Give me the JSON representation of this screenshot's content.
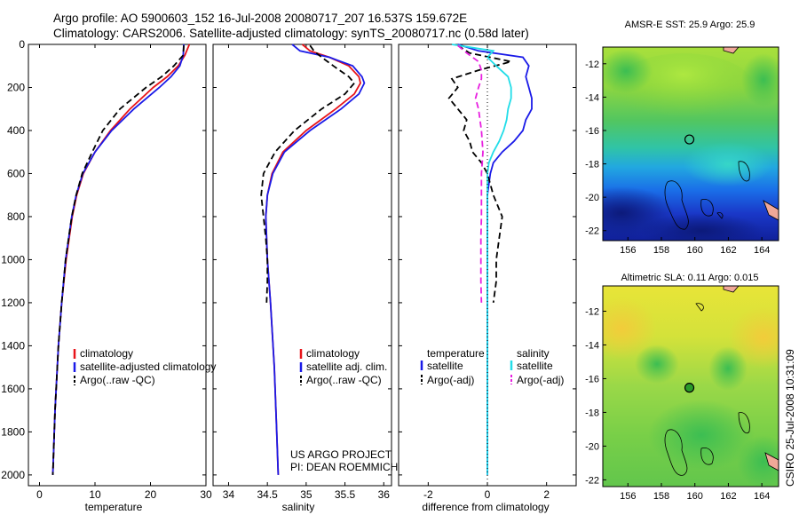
{
  "header": {
    "line1": "Argo profile: AO 5900603_152 16-Jul-2008 20080717_207 16.537S 159.672E",
    "line2": "Climatology: CARS2006. Satellite-adjusted climatology: synTS_20080717.nc (0.58d later)"
  },
  "footer": {
    "project": "US ARGO PROJECT",
    "pi": "PI: DEAN ROEMMICH",
    "stamp": "CSIRO 25-Jul-2008 10:31:09"
  },
  "colors": {
    "climatology": "#e8141a",
    "satellite": "#1a1ae8",
    "argo": "#000000",
    "sal_sat": "#22dde8",
    "sal_argo": "#e820e0"
  },
  "chart_data": [
    {
      "type": "line",
      "xlabel": "temperature",
      "ylabel": "",
      "xlim": [
        -2,
        30
      ],
      "ylim": [
        2050,
        0
      ],
      "xticks": [
        0,
        10,
        20,
        30
      ],
      "yticks": [
        0,
        200,
        400,
        600,
        800,
        1000,
        1200,
        1400,
        1600,
        1800,
        2000
      ],
      "legend": [
        "climatology",
        "satellite-adjusted climatology",
        "Argo(..raw -QC)"
      ],
      "series": [
        {
          "name": "climatology",
          "style": "solid",
          "color": "#e8141a",
          "depth": [
            0,
            50,
            100,
            150,
            200,
            300,
            400,
            500,
            600,
            700,
            800,
            1000,
            1200,
            1400,
            1700,
            2000
          ],
          "values": [
            27.0,
            26.2,
            25.0,
            23.0,
            20.5,
            16.3,
            12.8,
            10.0,
            7.9,
            6.7,
            5.9,
            4.8,
            4.0,
            3.4,
            2.8,
            2.4
          ]
        },
        {
          "name": "satellite-adjusted climatology",
          "style": "solid",
          "color": "#1a1ae8",
          "depth": [
            0,
            50,
            100,
            150,
            200,
            300,
            400,
            500,
            600,
            700,
            800,
            1000,
            1200,
            1400,
            1700,
            2000
          ],
          "values": [
            26.0,
            25.9,
            25.3,
            23.7,
            21.6,
            17.0,
            13.0,
            10.0,
            7.8,
            6.6,
            5.8,
            4.7,
            4.0,
            3.4,
            2.8,
            2.4
          ]
        },
        {
          "name": "Argo(..raw -QC)",
          "style": "dashed",
          "color": "#000000",
          "depth": [
            5,
            50,
            100,
            150,
            200,
            300,
            400,
            500,
            600,
            700,
            800,
            1000,
            1200,
            1400,
            1700,
            2000
          ],
          "values": [
            26.0,
            25.9,
            24.2,
            22.0,
            19.2,
            14.5,
            11.4,
            9.5,
            7.7,
            6.6,
            5.8,
            4.7,
            4.0,
            3.4,
            2.8,
            2.4
          ]
        }
      ]
    },
    {
      "type": "line",
      "xlabel": "salinity",
      "ylabel": "",
      "xlim": [
        33.8,
        36.1
      ],
      "ylim": [
        2050,
        0
      ],
      "xticks": [
        34,
        34.5,
        35,
        35.5,
        36
      ],
      "yticks": [
        0,
        200,
        400,
        600,
        800,
        1000,
        1200,
        1400,
        1600,
        1800,
        2000
      ],
      "legend": [
        "climatology",
        "satellite adj. clim.",
        "Argo(..raw -QC)"
      ],
      "series": [
        {
          "name": "climatology",
          "style": "solid",
          "color": "#e8141a",
          "depth": [
            0,
            30,
            60,
            100,
            150,
            180,
            230,
            300,
            400,
            500,
            600,
            700,
            800,
            1000,
            1200,
            1500,
            1800,
            2000
          ],
          "values": [
            34.95,
            35.05,
            35.3,
            35.55,
            35.68,
            35.7,
            35.62,
            35.38,
            35.0,
            34.7,
            34.56,
            34.5,
            34.48,
            34.5,
            34.54,
            34.59,
            34.62,
            34.64
          ]
        },
        {
          "name": "satellite adj. clim.",
          "style": "solid",
          "color": "#1a1ae8",
          "depth": [
            0,
            30,
            60,
            100,
            150,
            180,
            230,
            300,
            400,
            500,
            600,
            700,
            800,
            1000,
            1200,
            1500,
            1800,
            2000
          ],
          "values": [
            34.82,
            34.92,
            35.3,
            35.6,
            35.72,
            35.75,
            35.68,
            35.45,
            35.05,
            34.72,
            34.57,
            34.5,
            34.48,
            34.5,
            34.54,
            34.59,
            34.62,
            34.64
          ]
        },
        {
          "name": "Argo(..raw -QC)",
          "style": "dashed",
          "color": "#000000",
          "depth": [
            5,
            30,
            60,
            100,
            150,
            180,
            230,
            300,
            400,
            500,
            600,
            700,
            800,
            900,
            1000,
            1100,
            1200
          ],
          "values": [
            35.05,
            35.1,
            35.2,
            35.35,
            35.55,
            35.62,
            35.5,
            35.2,
            34.85,
            34.6,
            34.45,
            34.42,
            34.45,
            34.48,
            34.5,
            34.5,
            34.49
          ]
        }
      ]
    },
    {
      "type": "line",
      "xlabel": "difference from climatology",
      "ylabel": "",
      "xlim": [
        -3,
        3
      ],
      "ylim": [
        2050,
        0
      ],
      "xticks": [
        -2,
        0,
        2
      ],
      "yticks": [
        0,
        200,
        400,
        600,
        800,
        1000,
        1200,
        1400,
        1600,
        1800,
        2000
      ],
      "legend": [
        "temperature",
        "satellite",
        "Argo(-adj)",
        "salinity",
        "satellite",
        "Argo(-adj)"
      ],
      "series": [
        {
          "name": "temperature satellite",
          "style": "solid",
          "color": "#1a1ae8",
          "depth": [
            0,
            30,
            60,
            100,
            150,
            200,
            250,
            300,
            350,
            400,
            450,
            500,
            550,
            600,
            700,
            800,
            1000,
            1200,
            1500,
            2000
          ],
          "values": [
            -1.0,
            -0.3,
            1.2,
            1.4,
            1.3,
            1.4,
            1.5,
            1.5,
            1.3,
            1.2,
            0.9,
            0.5,
            0.2,
            0.1,
            0.0,
            0.0,
            0.0,
            0.0,
            0.0,
            0.0
          ]
        },
        {
          "name": "temperature Argo(-adj)",
          "style": "dashed",
          "color": "#000000",
          "depth": [
            5,
            40,
            80,
            120,
            160,
            200,
            250,
            300,
            350,
            400,
            450,
            500,
            550,
            600,
            700,
            800,
            900,
            1000,
            1100,
            1200
          ],
          "values": [
            -1.0,
            -0.6,
            0.8,
            -0.3,
            -1.2,
            -1.0,
            -1.3,
            -1.0,
            -0.7,
            -0.8,
            -0.6,
            -0.5,
            -0.2,
            0.0,
            0.2,
            0.5,
            0.4,
            0.3,
            0.3,
            0.2
          ]
        },
        {
          "name": "salinity satellite",
          "style": "solid",
          "color": "#22dde8",
          "depth": [
            0,
            30,
            60,
            100,
            150,
            200,
            250,
            300,
            350,
            400,
            450,
            500,
            550,
            600,
            700,
            1000,
            1500,
            2000
          ],
          "values": [
            -1.2,
            0.2,
            0.0,
            0.3,
            0.7,
            0.8,
            0.8,
            0.7,
            0.65,
            0.55,
            0.4,
            0.2,
            0.05,
            0.0,
            0.0,
            0.0,
            0.0,
            0.0
          ]
        },
        {
          "name": "salinity Argo(-adj)",
          "style": "dashed",
          "color": "#e820e0",
          "depth": [
            5,
            40,
            80,
            120,
            160,
            200,
            250,
            300,
            400,
            500,
            600,
            700,
            800,
            900,
            1000,
            1100,
            1200
          ],
          "values": [
            -1.0,
            -0.7,
            -0.3,
            -0.2,
            -0.2,
            -0.3,
            -0.4,
            -0.3,
            -0.2,
            -0.15,
            -0.2,
            -0.2,
            -0.2,
            -0.22,
            -0.22,
            -0.22,
            -0.2
          ]
        }
      ]
    },
    {
      "type": "heatmap",
      "title": "AMSR-E SST: 25.9 Argo: 25.9",
      "xlim": [
        154.5,
        165
      ],
      "ylim": [
        -22.6,
        -11
      ],
      "xticks": [
        156,
        158,
        160,
        162,
        164
      ],
      "yticks": [
        -12,
        -14,
        -16,
        -18,
        -20,
        -22
      ],
      "marker": {
        "lon": 159.672,
        "lat": -16.537
      }
    },
    {
      "type": "heatmap",
      "title": "Altimetric SLA: 0.11 Argo: 0.015",
      "xlim": [
        154.5,
        165
      ],
      "ylim": [
        -22.4,
        -10.5
      ],
      "xticks": [
        156,
        158,
        160,
        162,
        164
      ],
      "yticks": [
        -12,
        -14,
        -16,
        -18,
        -20,
        -22
      ],
      "marker": {
        "lon": 159.672,
        "lat": -16.537
      }
    }
  ]
}
